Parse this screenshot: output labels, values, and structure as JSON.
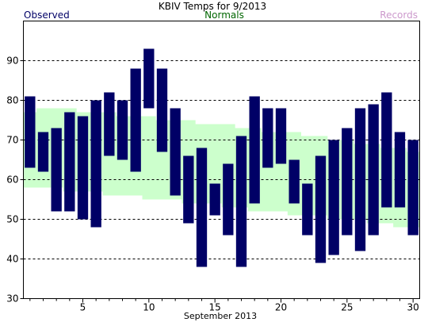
{
  "chart_data": {
    "type": "bar",
    "title": "KBIV Temps for 9/2013",
    "xlabel": "September 2013",
    "ylabel": "",
    "legend": {
      "observed": "Observed",
      "normals": "Normals",
      "records": "Records"
    },
    "colors": {
      "observed": "#000066",
      "normals": "#ccffcc",
      "normals_text": "#006600",
      "records_text": "#cc99cc",
      "grid": "#000000"
    },
    "xlim": [
      0.5,
      30.5
    ],
    "ylim": [
      30,
      100
    ],
    "y_ticks": [
      30,
      40,
      50,
      60,
      70,
      80,
      90
    ],
    "x_ticks": [
      5,
      10,
      15,
      20,
      25,
      30
    ],
    "days": [
      1,
      2,
      3,
      4,
      5,
      6,
      7,
      8,
      9,
      10,
      11,
      12,
      13,
      14,
      15,
      16,
      17,
      18,
      19,
      20,
      21,
      22,
      23,
      24,
      25,
      26,
      27,
      28,
      29,
      30
    ],
    "series": [
      {
        "name": "Observed",
        "high": [
          81,
          72,
          73,
          77,
          76,
          80,
          82,
          80,
          88,
          93,
          88,
          78,
          66,
          68,
          59,
          64,
          71,
          81,
          78,
          78,
          65,
          59,
          66,
          70,
          73,
          78,
          79,
          82,
          72,
          70
        ],
        "low": [
          63,
          62,
          52,
          52,
          50,
          48,
          66,
          65,
          62,
          78,
          67,
          56,
          49,
          38,
          51,
          46,
          38,
          54,
          63,
          64,
          54,
          46,
          39,
          41,
          46,
          42,
          46,
          53,
          53,
          46
        ]
      },
      {
        "name": "Normals",
        "high": [
          77,
          78,
          78,
          78,
          77,
          77,
          77,
          76,
          76,
          76,
          75,
          75,
          75,
          74,
          74,
          74,
          73,
          73,
          72,
          72,
          72,
          71,
          71,
          70,
          70,
          69,
          69,
          68,
          68,
          67
        ],
        "low": [
          58,
          58,
          58,
          57,
          57,
          57,
          56,
          56,
          56,
          55,
          55,
          55,
          54,
          54,
          54,
          53,
          53,
          52,
          52,
          52,
          51,
          51,
          51,
          50,
          50,
          50,
          49,
          49,
          48,
          48
        ]
      }
    ]
  }
}
